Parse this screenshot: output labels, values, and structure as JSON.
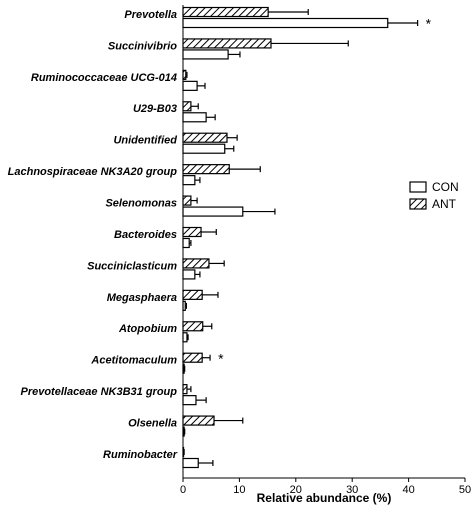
{
  "chart_data": {
    "type": "bar",
    "orientation": "horizontal",
    "categories": [
      "Prevotella",
      "Succinivibrio",
      "Ruminococcaceae UCG-014",
      "U29-B03",
      "Unidentified",
      "Lachnospiraceae NK3A20 group",
      "Selenomonas",
      "Bacteroides",
      "Succiniclasticum",
      "Megasphaera",
      "Atopobium",
      "Acetitomaculum",
      "Prevotellaceae NK3B31 group",
      "Olsenella",
      "Ruminobacter"
    ],
    "series": [
      {
        "name": "CON",
        "color": "#000000",
        "fill": "solid",
        "values": [
          36.3,
          8.0,
          2.5,
          4.1,
          7.4,
          2.1,
          10.6,
          1.1,
          2.1,
          0.4,
          0.7,
          0.2,
          2.3,
          0.2,
          2.7
        ],
        "errors": [
          5.3,
          2.1,
          1.4,
          1.6,
          1.6,
          0.9,
          5.7,
          0.3,
          0.9,
          0.2,
          0.2,
          0.1,
          1.8,
          0.1,
          2.6
        ],
        "markers": [
          "*",
          null,
          null,
          null,
          null,
          null,
          null,
          null,
          null,
          null,
          null,
          null,
          null,
          null,
          null
        ]
      },
      {
        "name": "ANT",
        "color": "#000000",
        "fill": "hatch",
        "values": [
          15.1,
          15.6,
          0.5,
          1.4,
          7.8,
          8.2,
          1.4,
          3.2,
          4.6,
          3.4,
          3.5,
          3.4,
          0.7,
          5.5,
          0.1
        ],
        "errors": [
          7.1,
          13.7,
          0.2,
          1.3,
          1.8,
          5.5,
          1.1,
          2.7,
          2.7,
          2.8,
          1.6,
          1.4,
          0.7,
          5.1,
          0.1
        ],
        "markers": [
          null,
          null,
          null,
          null,
          null,
          null,
          null,
          null,
          null,
          null,
          null,
          "*",
          null,
          null,
          null
        ]
      }
    ],
    "x_label": "Relative abundance (%)",
    "xlim": [
      0,
      50
    ],
    "xticks": [
      0,
      10,
      20,
      30,
      40,
      50
    ],
    "legend": "right"
  }
}
